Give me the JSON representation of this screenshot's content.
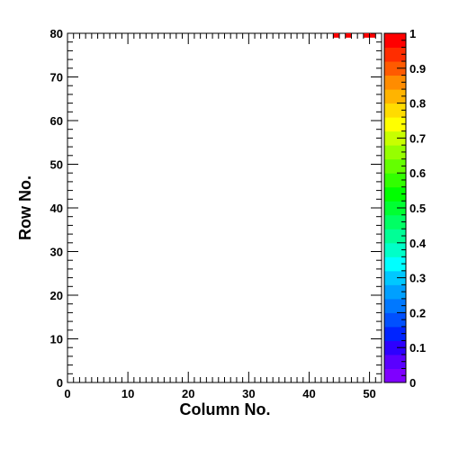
{
  "chart_data": {
    "type": "heatmap",
    "xlabel": "Column No.",
    "ylabel": "Row No.",
    "xlim": [
      0,
      52
    ],
    "ylim": [
      0,
      80
    ],
    "x_ticks": [
      0,
      10,
      20,
      30,
      40,
      50
    ],
    "y_ticks": [
      0,
      10,
      20,
      30,
      40,
      50,
      60,
      70,
      80
    ],
    "zlim": [
      0,
      1
    ],
    "z_ticks": [
      0,
      0.1,
      0.2,
      0.3,
      0.4,
      0.5,
      0.6,
      0.7,
      0.8,
      0.9,
      1
    ],
    "palette": [
      "#7f00ff",
      "#5a00ff",
      "#2d00ff",
      "#0024ff",
      "#0050ff",
      "#0078ff",
      "#00a0ff",
      "#00c8ff",
      "#00ffff",
      "#00ffc8",
      "#00ff96",
      "#00ff64",
      "#00ff32",
      "#00ff00",
      "#32ff00",
      "#64ff00",
      "#96ff00",
      "#c8ff00",
      "#ffff00",
      "#ffdc00",
      "#ffb400",
      "#ff8c00",
      "#ff5a00",
      "#ff2d00",
      "#ff0000"
    ],
    "cells": [
      {
        "x": 44,
        "y": 79,
        "value": 1
      },
      {
        "x": 46,
        "y": 79,
        "value": 1
      },
      {
        "x": 49,
        "y": 79,
        "value": 1
      },
      {
        "x": 50,
        "y": 79,
        "value": 1
      }
    ]
  }
}
